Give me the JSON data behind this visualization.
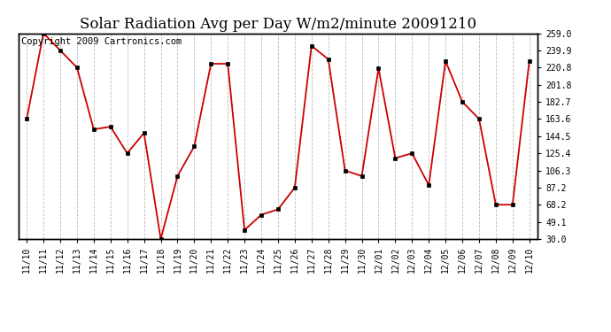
{
  "title": "Solar Radiation Avg per Day W/m2/minute 20091210",
  "copyright": "Copyright 2009 Cartronics.com",
  "labels": [
    "11/10",
    "11/11",
    "11/12",
    "11/13",
    "11/14",
    "11/15",
    "11/16",
    "11/17",
    "11/18",
    "11/19",
    "11/20",
    "11/21",
    "11/22",
    "11/23",
    "11/24",
    "11/25",
    "11/26",
    "11/27",
    "11/28",
    "11/29",
    "11/30",
    "12/01",
    "12/02",
    "12/03",
    "12/04",
    "12/05",
    "12/06",
    "12/07",
    "12/08",
    "12/09",
    "12/10"
  ],
  "values": [
    163.6,
    259.0,
    239.9,
    220.8,
    152.0,
    155.0,
    125.4,
    148.0,
    30.0,
    100.0,
    133.0,
    225.0,
    225.0,
    40.0,
    57.0,
    63.0,
    87.2,
    245.0,
    230.0,
    106.3,
    100.0,
    220.0,
    120.0,
    125.4,
    90.0,
    228.0,
    182.7,
    163.6,
    68.2,
    68.2,
    228.0
  ],
  "line_color": "#cc0000",
  "marker_color": "#000000",
  "bg_color": "#ffffff",
  "plot_bg_color": "#ffffff",
  "grid_color": "#aaaaaa",
  "ylim": [
    30.0,
    259.0
  ],
  "yticks": [
    30.0,
    49.1,
    68.2,
    87.2,
    106.3,
    125.4,
    144.5,
    163.6,
    182.7,
    201.8,
    220.8,
    239.9,
    259.0
  ],
  "ytick_labels": [
    "30.0",
    "49.1",
    "68.2",
    "87.2",
    "106.3",
    "125.4",
    "144.5",
    "163.6",
    "182.7",
    "201.8",
    "220.8",
    "239.9",
    "259.0"
  ],
  "title_fontsize": 12,
  "tick_fontsize": 7,
  "copyright_fontsize": 7.5
}
